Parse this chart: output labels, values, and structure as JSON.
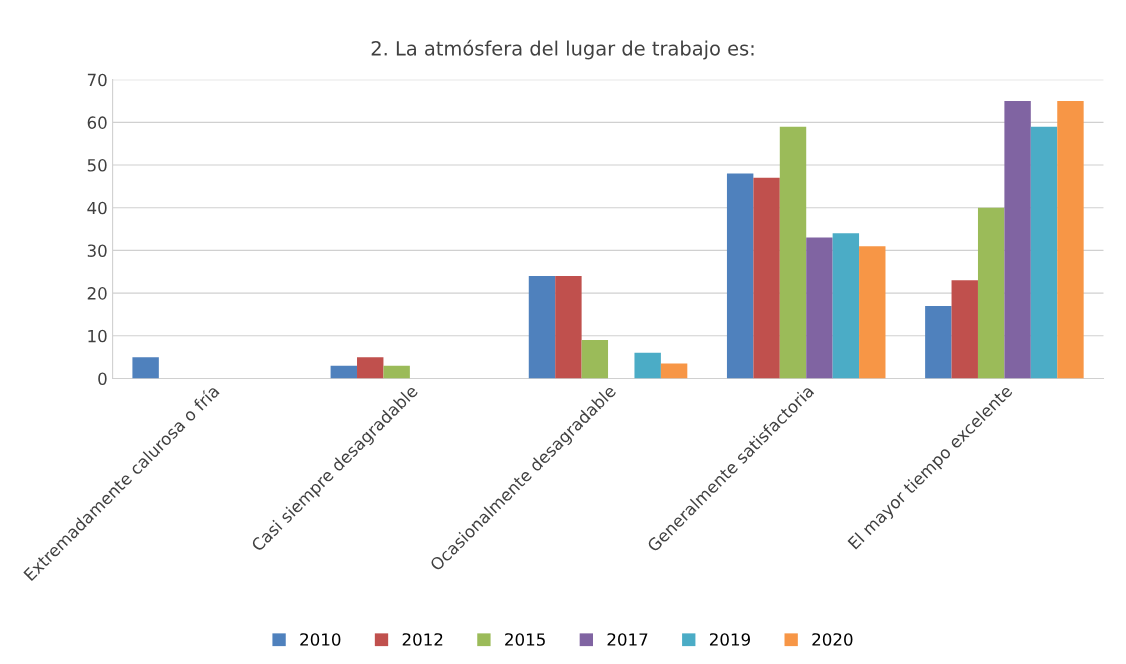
{
  "chart_data": {
    "type": "bar",
    "title": "2. La atmósfera del lugar de trabajo es:",
    "categories": [
      "Extremadamente calurosa o fría",
      "Casi siempre desagradable",
      "Ocasionalmente desagradable",
      "Generalmente satisfactoria",
      "El mayor tiempo excelente"
    ],
    "series": [
      {
        "name": "2010",
        "color": "#4f81bd",
        "values": [
          5,
          3,
          24,
          48,
          17
        ]
      },
      {
        "name": "2012",
        "color": "#c0504d",
        "values": [
          0,
          5,
          24,
          47,
          23
        ]
      },
      {
        "name": "2015",
        "color": "#9bbb59",
        "values": [
          0,
          3,
          9,
          59,
          40
        ]
      },
      {
        "name": "2017",
        "color": "#8064a2",
        "values": [
          0,
          0,
          0,
          33,
          65
        ]
      },
      {
        "name": "2019",
        "color": "#4bacc6",
        "values": [
          0,
          0,
          6,
          34,
          59
        ]
      },
      {
        "name": "2020",
        "color": "#f79646",
        "values": [
          0,
          0,
          3.5,
          31,
          65
        ]
      }
    ],
    "ylim": [
      0,
      70
    ],
    "yticks": [
      0,
      10,
      20,
      30,
      40,
      50,
      60,
      70
    ],
    "grid": "y",
    "legend": "bottom"
  }
}
